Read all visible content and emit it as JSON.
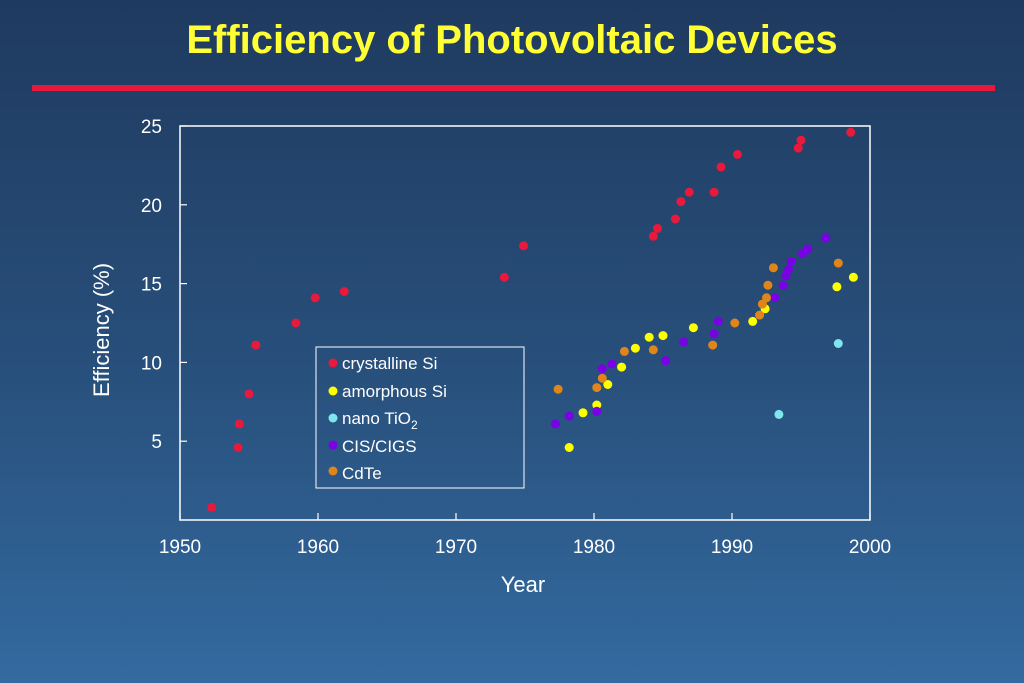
{
  "title": "Efficiency of Photovoltaic Devices",
  "chart_data": {
    "type": "scatter",
    "xlabel": "Year",
    "ylabel": "Efficiency (%)",
    "xlim": [
      1950,
      2000
    ],
    "ylim": [
      0,
      25
    ],
    "xticks": [
      "1950",
      "1960",
      "1970",
      "1980",
      "1990",
      "2000"
    ],
    "yticks": [
      "5",
      "10",
      "15",
      "20",
      "25"
    ],
    "grid": false,
    "legend_position": "lower-left-inside",
    "series": [
      {
        "name": "crystalline Si",
        "color": "#e8193c",
        "points": [
          [
            1952.3,
            0.8
          ],
          [
            1954.2,
            4.6
          ],
          [
            1954.3,
            6.1
          ],
          [
            1955.0,
            8.0
          ],
          [
            1955.5,
            11.1
          ],
          [
            1958.4,
            12.5
          ],
          [
            1959.8,
            14.1
          ],
          [
            1961.9,
            14.5
          ],
          [
            1973.5,
            15.4
          ],
          [
            1974.9,
            17.4
          ],
          [
            1984.3,
            18.0
          ],
          [
            1984.6,
            18.5
          ],
          [
            1985.9,
            19.1
          ],
          [
            1986.3,
            20.2
          ],
          [
            1986.9,
            20.8
          ],
          [
            1988.7,
            20.8
          ],
          [
            1989.2,
            22.4
          ],
          [
            1990.4,
            23.2
          ],
          [
            1994.8,
            23.6
          ],
          [
            1995.0,
            24.1
          ],
          [
            1998.6,
            24.6
          ]
        ]
      },
      {
        "name": "amorphous Si",
        "color": "#ffff00",
        "points": [
          [
            1978.2,
            4.6
          ],
          [
            1979.2,
            6.8
          ],
          [
            1980.2,
            7.3
          ],
          [
            1981.0,
            8.6
          ],
          [
            1982.0,
            9.7
          ],
          [
            1983.0,
            10.9
          ],
          [
            1984.0,
            11.6
          ],
          [
            1985.0,
            11.7
          ],
          [
            1987.2,
            12.2
          ],
          [
            1991.5,
            12.6
          ],
          [
            1992.4,
            13.4
          ],
          [
            1997.6,
            14.8
          ],
          [
            1998.8,
            15.4
          ]
        ]
      },
      {
        "name": "nano TiO",
        "color": "#7fe6ee",
        "points": [
          [
            1993.4,
            6.7
          ],
          [
            1997.7,
            11.2
          ]
        ]
      },
      {
        "name": "CIS/CIGS",
        "color": "#7a00e6",
        "points": [
          [
            1977.2,
            6.1
          ],
          [
            1978.2,
            6.6
          ],
          [
            1980.2,
            6.9
          ],
          [
            1980.6,
            9.6
          ],
          [
            1981.3,
            9.9
          ],
          [
            1985.2,
            10.1
          ],
          [
            1986.5,
            11.3
          ],
          [
            1988.7,
            11.8
          ],
          [
            1989.0,
            12.6
          ],
          [
            1993.1,
            14.1
          ],
          [
            1993.7,
            14.9
          ],
          [
            1993.9,
            15.5
          ],
          [
            1994.1,
            15.9
          ],
          [
            1994.3,
            16.4
          ],
          [
            1995.1,
            16.9
          ],
          [
            1995.5,
            17.2
          ],
          [
            1996.8,
            17.9
          ]
        ]
      },
      {
        "name": "CdTe",
        "color": "#e0851a",
        "points": [
          [
            1977.4,
            8.3
          ],
          [
            1980.2,
            8.4
          ],
          [
            1980.6,
            9.0
          ],
          [
            1982.2,
            10.7
          ],
          [
            1984.3,
            10.8
          ],
          [
            1988.6,
            11.1
          ],
          [
            1990.2,
            12.5
          ],
          [
            1992.0,
            13.0
          ],
          [
            1992.2,
            13.7
          ],
          [
            1992.5,
            14.1
          ],
          [
            1992.6,
            14.9
          ],
          [
            1993.0,
            16.0
          ],
          [
            1997.7,
            16.3
          ]
        ]
      }
    ],
    "legend_labels": {
      "crystalline_si": "crystalline Si",
      "amorphous_si": "amorphous Si",
      "nano_tio2_main": "nano TiO",
      "nano_tio2_sub": "2",
      "cis_cigs": "CIS/CIGS",
      "cdte": "CdTe"
    }
  }
}
